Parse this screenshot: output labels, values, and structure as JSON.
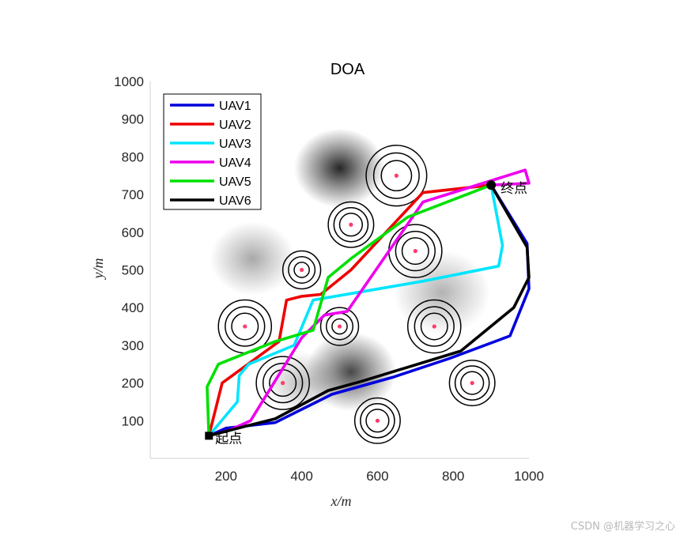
{
  "chart_data": {
    "type": "line",
    "title": "DOA",
    "xlabel": "x/m",
    "ylabel": "y/m",
    "xlim": [
      0,
      1000
    ],
    "ylim": [
      0,
      1000
    ],
    "xticks": [
      200,
      400,
      600,
      800,
      1000
    ],
    "yticks": [
      100,
      200,
      300,
      400,
      500,
      600,
      700,
      800,
      900,
      1000
    ],
    "legend_position": "top-left",
    "start": {
      "label": "起点",
      "x": 155,
      "y": 60
    },
    "end": {
      "label": "终点",
      "x": 900,
      "y": 725
    },
    "threats": [
      {
        "x": 650,
        "y": 750,
        "rings": [
          80,
          60,
          40
        ]
      },
      {
        "x": 530,
        "y": 620,
        "rings": [
          60,
          45,
          30
        ]
      },
      {
        "x": 700,
        "y": 550,
        "rings": [
          70,
          52,
          35
        ]
      },
      {
        "x": 400,
        "y": 500,
        "rings": [
          50,
          35,
          20
        ]
      },
      {
        "x": 250,
        "y": 350,
        "rings": [
          70,
          52,
          35
        ]
      },
      {
        "x": 500,
        "y": 350,
        "rings": [
          50,
          35,
          20
        ]
      },
      {
        "x": 750,
        "y": 350,
        "rings": [
          70,
          52,
          35
        ]
      },
      {
        "x": 350,
        "y": 200,
        "rings": [
          70,
          52,
          35
        ]
      },
      {
        "x": 850,
        "y": 200,
        "rings": [
          60,
          45,
          30
        ]
      },
      {
        "x": 600,
        "y": 100,
        "rings": [
          60,
          45,
          30
        ]
      }
    ],
    "mountains": [
      {
        "x": 500,
        "y": 770,
        "h": 1.0,
        "s": 75
      },
      {
        "x": 530,
        "y": 230,
        "h": 0.85,
        "s": 75
      },
      {
        "x": 270,
        "y": 530,
        "h": 0.4,
        "s": 70
      },
      {
        "x": 770,
        "y": 440,
        "h": 0.35,
        "s": 80
      },
      {
        "x": 400,
        "y": 200,
        "h": 0.3,
        "s": 60
      }
    ],
    "series": [
      {
        "name": "UAV1",
        "color": "#0000dd",
        "x": [
          155,
          200,
          330,
          480,
          640,
          790,
          950,
          1000,
          995,
          900
        ],
        "y": [
          60,
          80,
          95,
          170,
          215,
          265,
          325,
          450,
          570,
          725
        ]
      },
      {
        "name": "UAV2",
        "color": "#ee0000",
        "x": [
          155,
          190,
          340,
          360,
          400,
          450,
          530,
          720,
          900
        ],
        "y": [
          60,
          200,
          310,
          420,
          430,
          435,
          500,
          705,
          725
        ]
      },
      {
        "name": "UAV3",
        "color": "#00e5ff",
        "x": [
          155,
          230,
          235,
          260,
          380,
          430,
          720,
          920,
          930,
          900
        ],
        "y": [
          60,
          150,
          220,
          250,
          300,
          420,
          470,
          510,
          565,
          725
        ]
      },
      {
        "name": "UAV4",
        "color": "#ee00ee",
        "x": [
          155,
          210,
          265,
          400,
          460,
          520,
          720,
          990,
          1000,
          900
        ],
        "y": [
          60,
          75,
          100,
          320,
          380,
          390,
          680,
          765,
          730,
          725
        ]
      },
      {
        "name": "UAV5",
        "color": "#00e000",
        "x": [
          155,
          150,
          180,
          330,
          430,
          470,
          530,
          680,
          900
        ],
        "y": [
          60,
          190,
          250,
          310,
          340,
          480,
          530,
          640,
          725
        ]
      },
      {
        "name": "UAV6",
        "color": "#000000",
        "x": [
          155,
          250,
          330,
          470,
          560,
          820,
          960,
          1000,
          995,
          900
        ],
        "y": [
          60,
          85,
          105,
          180,
          205,
          285,
          400,
          480,
          560,
          725
        ]
      }
    ]
  },
  "watermark": "CSDN @机器学习之心"
}
